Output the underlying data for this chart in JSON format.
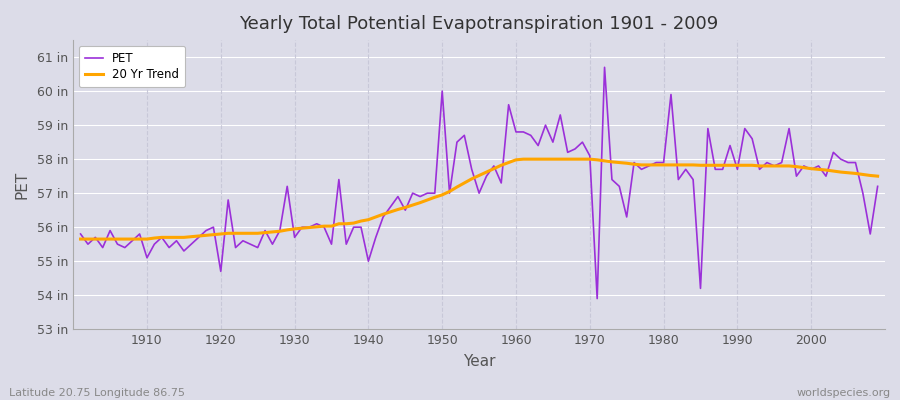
{
  "title": "Yearly Total Potential Evapotranspiration 1901 - 2009",
  "xlabel": "Year",
  "ylabel": "PET",
  "years": [
    1901,
    1902,
    1903,
    1904,
    1905,
    1906,
    1907,
    1908,
    1909,
    1910,
    1911,
    1912,
    1913,
    1914,
    1915,
    1916,
    1917,
    1918,
    1919,
    1920,
    1921,
    1922,
    1923,
    1924,
    1925,
    1926,
    1927,
    1928,
    1929,
    1930,
    1931,
    1932,
    1933,
    1934,
    1935,
    1936,
    1937,
    1938,
    1939,
    1940,
    1941,
    1942,
    1943,
    1944,
    1945,
    1946,
    1947,
    1948,
    1949,
    1950,
    1951,
    1952,
    1953,
    1954,
    1955,
    1956,
    1957,
    1958,
    1959,
    1960,
    1961,
    1962,
    1963,
    1964,
    1965,
    1966,
    1967,
    1968,
    1969,
    1970,
    1971,
    1972,
    1973,
    1974,
    1975,
    1976,
    1977,
    1978,
    1979,
    1980,
    1981,
    1982,
    1983,
    1984,
    1985,
    1986,
    1987,
    1988,
    1989,
    1990,
    1991,
    1992,
    1993,
    1994,
    1995,
    1996,
    1997,
    1998,
    1999,
    2000,
    2001,
    2002,
    2003,
    2004,
    2005,
    2006,
    2007,
    2008,
    2009
  ],
  "pet": [
    55.8,
    55.5,
    55.7,
    55.4,
    55.9,
    55.5,
    55.4,
    55.6,
    55.8,
    55.1,
    55.5,
    55.7,
    55.4,
    55.6,
    55.3,
    55.5,
    55.7,
    55.9,
    56.0,
    54.7,
    56.8,
    55.4,
    55.6,
    55.5,
    55.4,
    55.9,
    55.5,
    55.9,
    57.2,
    55.7,
    56.0,
    56.0,
    56.1,
    56.0,
    55.5,
    57.4,
    55.5,
    56.0,
    56.0,
    55.0,
    55.7,
    56.3,
    56.6,
    56.9,
    56.5,
    57.0,
    56.9,
    57.0,
    57.0,
    60.0,
    57.0,
    58.5,
    58.7,
    57.7,
    57.0,
    57.5,
    57.8,
    57.3,
    59.6,
    58.8,
    58.8,
    58.7,
    58.4,
    59.0,
    58.5,
    59.3,
    58.2,
    58.3,
    58.5,
    58.1,
    53.9,
    60.7,
    57.4,
    57.2,
    56.3,
    57.9,
    57.7,
    57.8,
    57.9,
    57.9,
    59.9,
    57.4,
    57.7,
    57.4,
    54.2,
    58.9,
    57.7,
    57.7,
    58.4,
    57.7,
    58.9,
    58.6,
    57.7,
    57.9,
    57.8,
    57.9,
    58.9,
    57.5,
    57.8,
    57.7,
    57.8,
    57.5,
    58.2,
    58.0,
    57.9,
    57.9,
    57.0,
    55.8,
    57.2
  ],
  "trend": [
    55.65,
    55.65,
    55.65,
    55.65,
    55.65,
    55.65,
    55.65,
    55.65,
    55.65,
    55.65,
    55.68,
    55.7,
    55.7,
    55.7,
    55.7,
    55.72,
    55.74,
    55.76,
    55.78,
    55.8,
    55.82,
    55.82,
    55.82,
    55.82,
    55.82,
    55.84,
    55.86,
    55.88,
    55.92,
    55.95,
    55.97,
    55.99,
    56.01,
    56.03,
    56.03,
    56.1,
    56.1,
    56.12,
    56.18,
    56.22,
    56.3,
    56.38,
    56.45,
    56.52,
    56.58,
    56.65,
    56.72,
    56.8,
    56.88,
    56.95,
    57.05,
    57.18,
    57.3,
    57.42,
    57.52,
    57.62,
    57.72,
    57.82,
    57.9,
    57.98,
    58.0,
    58.0,
    58.0,
    58.0,
    58.0,
    58.0,
    58.0,
    58.0,
    58.0,
    58.0,
    57.98,
    57.95,
    57.92,
    57.9,
    57.88,
    57.85,
    57.83,
    57.83,
    57.83,
    57.83,
    57.83,
    57.83,
    57.83,
    57.83,
    57.82,
    57.82,
    57.82,
    57.82,
    57.82,
    57.82,
    57.82,
    57.82,
    57.8,
    57.8,
    57.8,
    57.8,
    57.8,
    57.78,
    57.75,
    57.72,
    57.7,
    57.68,
    57.65,
    57.62,
    57.6,
    57.58,
    57.55,
    57.52,
    57.5
  ],
  "pet_color": "#9b30d9",
  "trend_color": "#FFA500",
  "bg_color": "#dcdce8",
  "plot_bg_color": "#dcdce8",
  "grid_color_h": "#ffffff",
  "grid_color_v": "#c8c8d8",
  "ylim": [
    53.0,
    61.5
  ],
  "yticks": [
    53,
    54,
    55,
    56,
    57,
    58,
    59,
    60,
    61
  ],
  "xlim_start": 1900,
  "xlim_end": 2010,
  "xticks": [
    1910,
    1920,
    1930,
    1940,
    1950,
    1960,
    1970,
    1980,
    1990,
    2000
  ],
  "legend_labels": [
    "PET",
    "20 Yr Trend"
  ],
  "footnote_left": "Latitude 20.75 Longitude 86.75",
  "footnote_right": "worldspecies.org"
}
